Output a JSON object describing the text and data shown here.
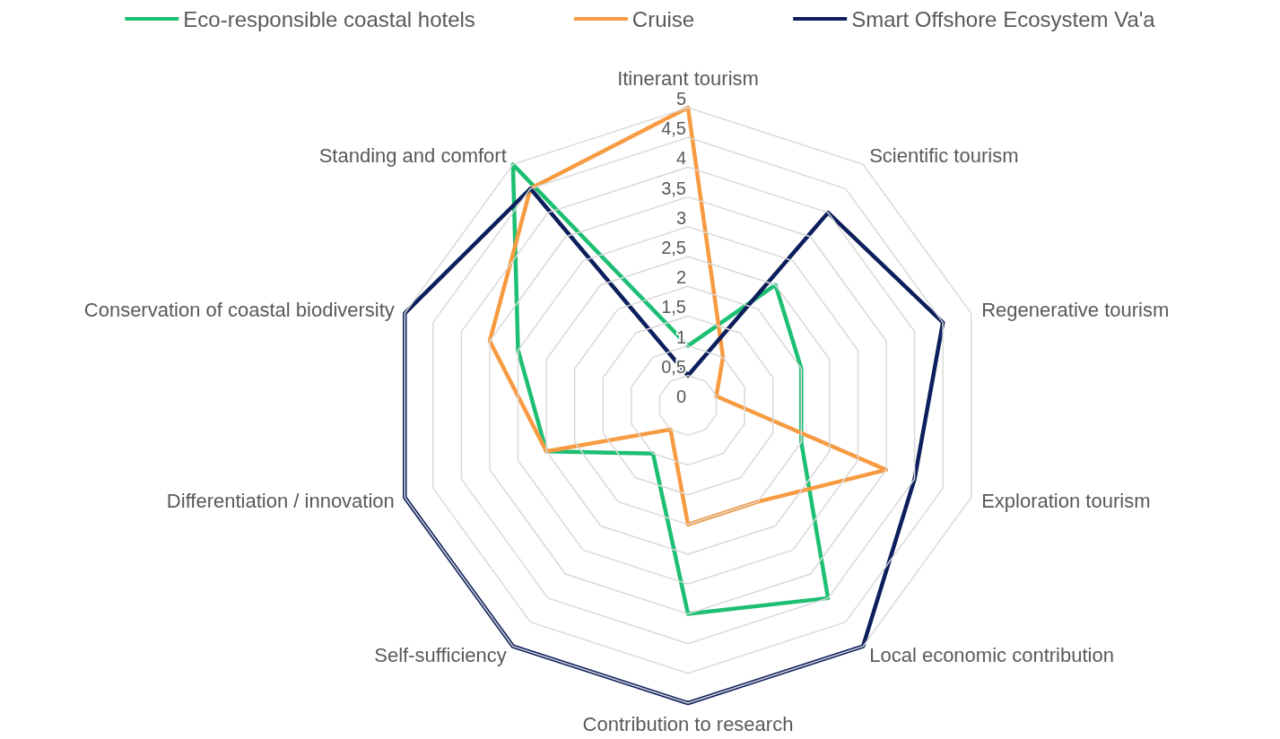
{
  "chart_data": {
    "type": "radar",
    "categories": [
      "Itinerant tourism",
      "Scientific tourism",
      "Regenerative tourism",
      "Exploration tourism",
      "Local economic contribution",
      "Contribution to research",
      "Self-sufficiency",
      "Differentiation / innovation",
      "Conservation of coastal biodiversity",
      "Standing and comfort"
    ],
    "series": [
      {
        "name": "Eco-responsible coastal hotels",
        "color": "#1dbf73",
        "values": [
          1,
          2.5,
          2,
          2,
          4,
          3.5,
          1,
          2.5,
          3,
          5
        ]
      },
      {
        "name": "Cruise",
        "color": "#f79b42",
        "values": [
          5,
          1,
          0.5,
          3.5,
          2,
          2,
          0.5,
          2.5,
          3.5,
          4.5
        ]
      },
      {
        "name": "Smart Offshore Ecosystem Va'a",
        "color": "#0c1f5c",
        "values": [
          0.5,
          4,
          4.5,
          4,
          5,
          5,
          5,
          5,
          5,
          4.5
        ]
      }
    ],
    "ylim": [
      0,
      5
    ],
    "yticks": [
      0,
      {
        "value": 0.5,
        "label": "0,5"
      },
      1,
      {
        "value": 1.5,
        "label": "1,5"
      },
      2,
      {
        "value": 2.5,
        "label": "2,5"
      },
      3,
      {
        "value": 3.5,
        "label": "3,5"
      },
      4,
      {
        "value": 4.5,
        "label": "4,5"
      },
      5
    ],
    "legend": "top",
    "marker": "none",
    "line_style": "solid",
    "grid": true
  }
}
